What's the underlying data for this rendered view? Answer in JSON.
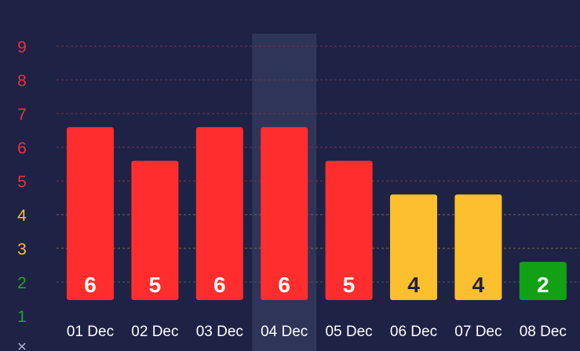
{
  "chart_data": {
    "type": "bar",
    "categories": [
      "01 Dec",
      "02 Dec",
      "03 Dec",
      "04 Dec",
      "05 Dec",
      "06 Dec",
      "07 Dec",
      "08 Dec"
    ],
    "values": [
      6,
      5,
      6,
      6,
      5,
      4,
      4,
      2
    ],
    "y_ticks": [
      "1",
      "2",
      "3",
      "4",
      "5",
      "6",
      "7",
      "8",
      "9"
    ],
    "ylim": [
      1,
      9.3
    ],
    "highlighted_category": "04 Dec",
    "bottom_axis_glyph": "✕",
    "colors": {
      "background": "#1e2245",
      "red": "#ff2d2d",
      "yellow": "#fcbf2d",
      "green": "#12a115",
      "highlight_band": "#2f3558",
      "label_dark": "#1f2235",
      "label_light": "#ffffff",
      "tick_red": "#e8323e",
      "tick_yellow": "#fcbf2d",
      "tick_green": "#1fa32a",
      "grid_red": "#7a3045",
      "grid_yellow": "#7a6a3a",
      "grid_green": "#3a5a5a"
    }
  }
}
